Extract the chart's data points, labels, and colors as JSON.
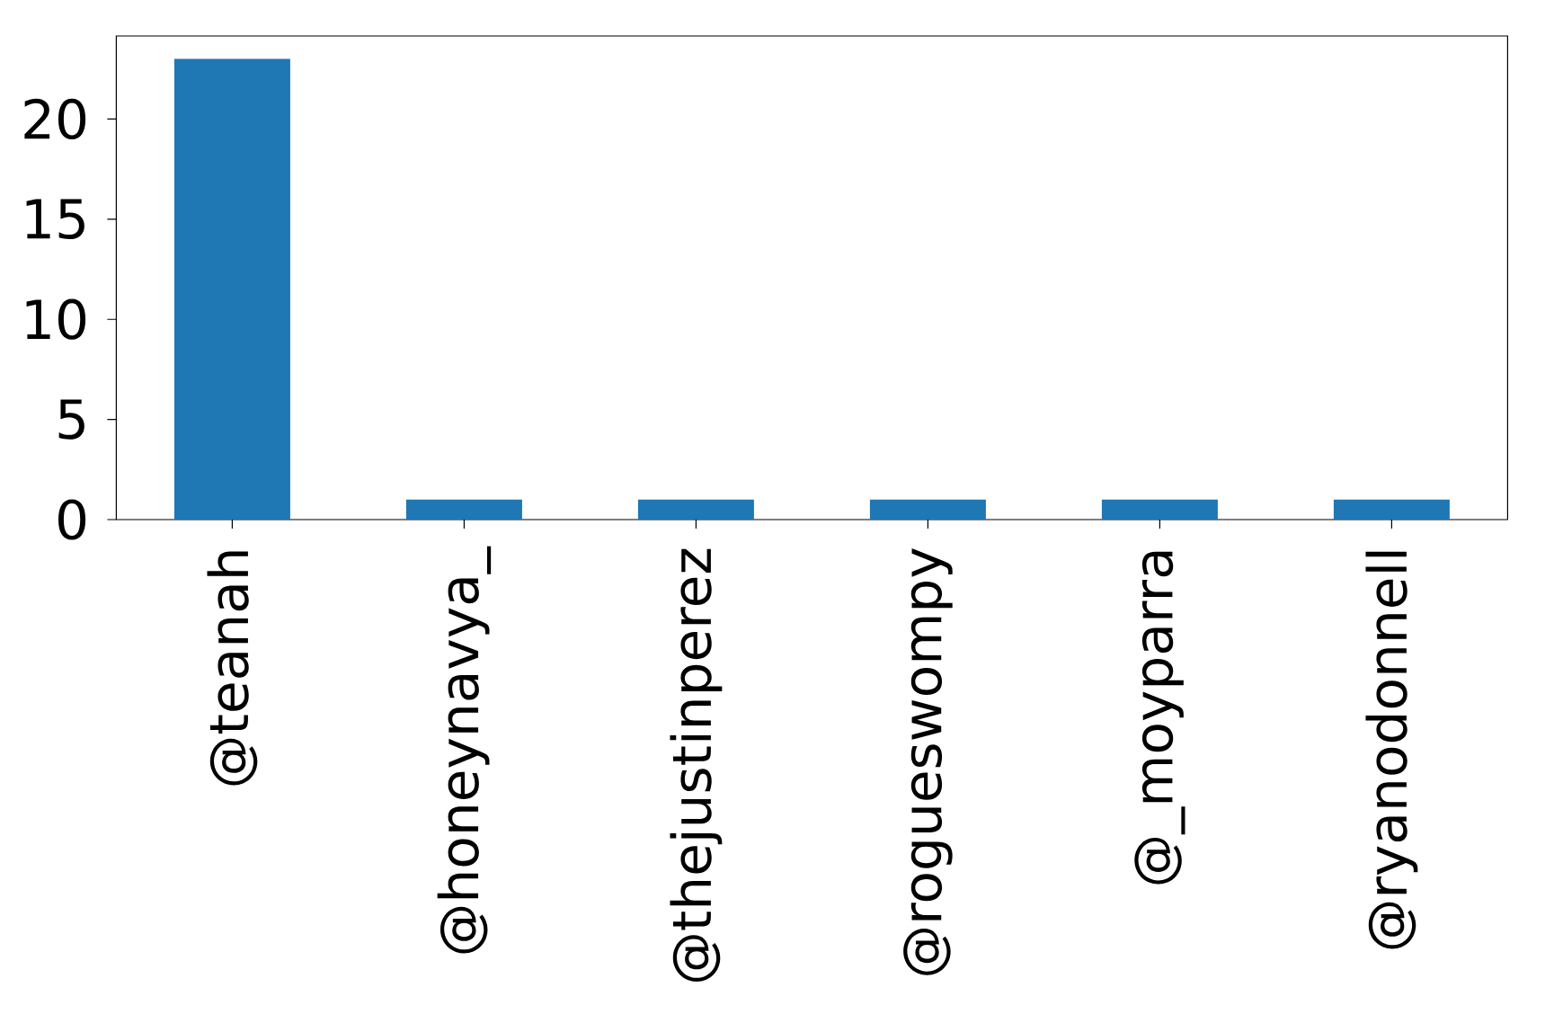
{
  "chart_data": {
    "type": "bar",
    "categories": [
      "@teanah",
      "@honeynavya_",
      "@thejustinperez",
      "@rogueswompy",
      "@_moyparra",
      "@ryanodonnell"
    ],
    "values": [
      23,
      1,
      1,
      1,
      1,
      1
    ],
    "color": "#1f77b4",
    "ylim": [
      0,
      24.15
    ],
    "yticks": [
      0,
      5,
      10,
      15,
      20
    ]
  }
}
